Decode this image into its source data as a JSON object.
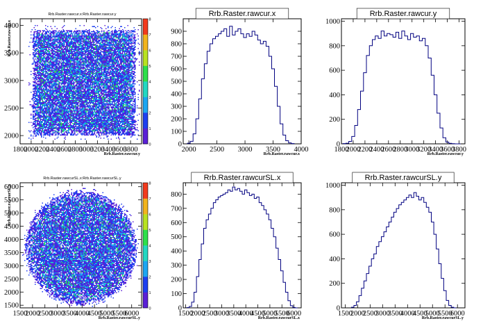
{
  "colors": {
    "frame": "#000000",
    "hist_line": "#000080",
    "palette": [
      "#ffffff",
      "#5a1fd6",
      "#1d3ff0",
      "#1ba6f2",
      "#22d8c2",
      "#2ee04a",
      "#b8e21f",
      "#f2b41c",
      "#f23a1c"
    ]
  },
  "chart_data": [
    {
      "id": "pad1",
      "type": "heatmap",
      "title": "Rrb.Raster.rawcur.x:Rrb.Raster.rawcur.y",
      "xlabel": "Rrb.Raster.rawcur.y",
      "ylabel": "Rrb.Raster.rawcur.x",
      "xlim": [
        1800,
        4000
      ],
      "ylim": [
        1850,
        4120
      ],
      "xticks": [
        1800,
        2000,
        2200,
        2400,
        2600,
        2800,
        3000,
        3200,
        3400,
        3600,
        3800
      ],
      "yticks": [
        2000,
        2500,
        3000,
        3500,
        4000
      ],
      "ytick_labels": [
        "2000",
        "2500",
        "3000",
        "3500",
        "4000"
      ],
      "zlim": [
        0,
        8
      ],
      "zticks": [
        "0",
        "1",
        "2",
        "3",
        "4",
        "5",
        "6",
        "7",
        "8"
      ],
      "region": {
        "shape": "square",
        "x": [
          2020,
          3880
        ],
        "y": [
          2020,
          3930
        ]
      }
    },
    {
      "id": "pad2",
      "type": "line",
      "title": "Rrb.Raster.rawcur.x",
      "xlabel": "Rrb.Raster.rawcur.x",
      "xlim": [
        1900,
        4000
      ],
      "ylim": [
        0,
        1000
      ],
      "xticks": [
        2000,
        2500,
        3000,
        3500,
        4000
      ],
      "yticks": [
        0,
        100,
        200,
        300,
        400,
        500,
        600,
        700,
        800,
        900
      ],
      "x": [
        2000,
        2050,
        2100,
        2150,
        2200,
        2250,
        2300,
        2350,
        2400,
        2450,
        2500,
        2550,
        2600,
        2650,
        2700,
        2750,
        2800,
        2850,
        2900,
        2950,
        3000,
        3050,
        3100,
        3150,
        3200,
        3250,
        3300,
        3350,
        3400,
        3450,
        3500,
        3550,
        3600,
        3650,
        3700,
        3750,
        3800,
        3850
      ],
      "values": [
        5,
        20,
        80,
        200,
        360,
        520,
        640,
        740,
        800,
        840,
        860,
        880,
        900,
        920,
        860,
        940,
        870,
        900,
        920,
        880,
        850,
        880,
        860,
        900,
        870,
        830,
        800,
        820,
        780,
        700,
        600,
        460,
        300,
        160,
        70,
        25,
        8,
        2
      ]
    },
    {
      "id": "pad3",
      "type": "line",
      "title": "Rrb.Raster.rawcur.y",
      "xlabel": "Rrb.Raster.rawcur.y",
      "xlim": [
        1800,
        3900
      ],
      "ylim": [
        0,
        1020
      ],
      "xticks": [
        1800,
        2000,
        2200,
        2400,
        2600,
        2800,
        3000,
        3200,
        3400,
        3600,
        3800
      ],
      "yticks": [
        0,
        200,
        400,
        600,
        800,
        1000
      ],
      "x": [
        1850,
        1900,
        1950,
        2000,
        2050,
        2100,
        2150,
        2200,
        2250,
        2300,
        2350,
        2400,
        2450,
        2500,
        2550,
        2600,
        2650,
        2700,
        2750,
        2800,
        2850,
        2900,
        2950,
        3000,
        3050,
        3100,
        3150,
        3200,
        3250,
        3300,
        3350,
        3400,
        3450,
        3500,
        3550,
        3600,
        3650,
        3700,
        3750,
        3800
      ],
      "values": [
        2,
        5,
        20,
        60,
        150,
        280,
        430,
        580,
        720,
        800,
        850,
        880,
        860,
        920,
        880,
        900,
        890,
        870,
        910,
        860,
        920,
        880,
        850,
        900,
        870,
        880,
        840,
        860,
        800,
        700,
        560,
        400,
        250,
        130,
        50,
        15,
        4,
        1,
        0,
        0
      ]
    },
    {
      "id": "pad4",
      "type": "heatmap",
      "title": "Rrb.Raster.rawcurSL.x:Rrb.Raster.rawcurSL.y",
      "xlabel": "Rrb.Raster.rawcurSL.y",
      "ylabel": "Rrb.Raster.rawcurSL.x",
      "xlim": [
        1500,
        6400
      ],
      "ylim": [
        1400,
        6150
      ],
      "xticks": [
        1500,
        2000,
        2500,
        3000,
        3500,
        4000,
        4500,
        5000,
        5500,
        6000
      ],
      "yticks": [
        1500,
        2000,
        2500,
        3000,
        3500,
        4000,
        4500,
        5000,
        5500,
        6000
      ],
      "ytick_labels": [
        "1500",
        "2000",
        "2500",
        "3000",
        "3500",
        "4000",
        "4500",
        "5000",
        "5500",
        "6000"
      ],
      "zlim": [
        0,
        8
      ],
      "zticks": [
        "0",
        "1",
        "2",
        "3",
        "4",
        "5",
        "6",
        "7",
        "8"
      ],
      "region": {
        "shape": "disc",
        "cx": 3950,
        "cy": 3700,
        "rx": 2250,
        "ry": 2150
      }
    },
    {
      "id": "pad5",
      "type": "line",
      "title": "Rrb.Raster.rawcurSL.x",
      "xlabel": "Rrb.Raster.rawcurSL.x",
      "xlim": [
        1400,
        6300
      ],
      "ylim": [
        0,
        880
      ],
      "xticks": [
        1500,
        2000,
        2500,
        3000,
        3500,
        4000,
        4500,
        5000,
        5500,
        6000
      ],
      "yticks": [
        0,
        100,
        200,
        300,
        400,
        500,
        600,
        700,
        800
      ],
      "x": [
        1600,
        1700,
        1800,
        1900,
        2000,
        2100,
        2200,
        2300,
        2400,
        2500,
        2600,
        2700,
        2800,
        2900,
        3000,
        3100,
        3200,
        3300,
        3400,
        3500,
        3600,
        3700,
        3800,
        3900,
        4000,
        4100,
        4200,
        4300,
        4400,
        4500,
        4600,
        4700,
        4800,
        4900,
        5000,
        5100,
        5200,
        5300,
        5400,
        5500,
        5600,
        5700,
        5800,
        5900,
        6000,
        6100
      ],
      "values": [
        2,
        10,
        40,
        110,
        220,
        340,
        450,
        560,
        620,
        660,
        700,
        740,
        760,
        780,
        790,
        800,
        810,
        830,
        820,
        850,
        830,
        840,
        820,
        800,
        830,
        810,
        790,
        800,
        770,
        780,
        740,
        720,
        690,
        660,
        620,
        560,
        500,
        420,
        340,
        260,
        180,
        110,
        50,
        15,
        3,
        0
      ]
    },
    {
      "id": "pad6",
      "type": "line",
      "title": "Rrb.Raster.rawcurSL.y",
      "xlabel": "Rrb.Raster.rawcurSL.y",
      "xlim": [
        1350,
        6300
      ],
      "ylim": [
        0,
        1020
      ],
      "xticks": [
        1500,
        2000,
        2500,
        3000,
        3500,
        4000,
        4500,
        5000,
        5500,
        6000
      ],
      "yticks": [
        0,
        200,
        400,
        600,
        800,
        1000
      ],
      "x": [
        1800,
        1900,
        2000,
        2100,
        2200,
        2300,
        2400,
        2500,
        2600,
        2700,
        2800,
        2900,
        3000,
        3100,
        3200,
        3300,
        3400,
        3500,
        3600,
        3700,
        3800,
        3900,
        4000,
        4100,
        4200,
        4300,
        4400,
        4500,
        4600,
        4700,
        4800,
        4900,
        5000,
        5100,
        5200,
        5300,
        5400,
        5500,
        5600,
        5700,
        5800,
        5900
      ],
      "values": [
        5,
        20,
        50,
        100,
        160,
        220,
        280,
        340,
        400,
        440,
        500,
        540,
        580,
        620,
        660,
        700,
        740,
        780,
        810,
        840,
        860,
        880,
        900,
        920,
        900,
        940,
        910,
        880,
        900,
        860,
        820,
        780,
        700,
        600,
        480,
        360,
        240,
        140,
        60,
        20,
        5,
        0
      ]
    }
  ]
}
